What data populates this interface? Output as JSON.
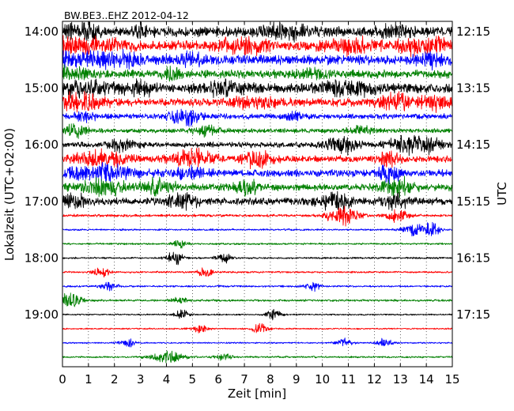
{
  "chart_data": {
    "type": "line",
    "title": "BW.BE3..EHZ 2012-04-12",
    "xlabel": "Zeit  [min]",
    "ylabel_left": "Lokalzeit (UTC+02:00)",
    "ylabel_right": "UTC",
    "xlim": [
      0,
      15
    ],
    "x_ticks": [
      0,
      1,
      2,
      3,
      4,
      5,
      6,
      7,
      8,
      9,
      10,
      11,
      12,
      13,
      14,
      15
    ],
    "x_grid": "dotted",
    "row_minutes": 15,
    "trace_colors": [
      "#000000",
      "#ff0000",
      "#0000ff",
      "#008000"
    ],
    "left_ticks": [
      {
        "label": "14:00",
        "row": 0
      },
      {
        "label": "15:00",
        "row": 4
      },
      {
        "label": "16:00",
        "row": 8
      },
      {
        "label": "17:00",
        "row": 12
      },
      {
        "label": "18:00",
        "row": 16
      },
      {
        "label": "19:00",
        "row": 20
      }
    ],
    "right_ticks": [
      {
        "label": "12:15",
        "row": 0
      },
      {
        "label": "13:15",
        "row": 4
      },
      {
        "label": "14:15",
        "row": 8
      },
      {
        "label": "15:15",
        "row": 12
      },
      {
        "label": "16:15",
        "row": 16
      },
      {
        "label": "17:15",
        "row": 20
      }
    ],
    "rows": [
      {
        "start": "14:00",
        "color": "#000000",
        "amplitude": 0.55,
        "events": [
          {
            "t": 0.4,
            "a": 1.0,
            "w": 0.9
          },
          {
            "t": 3.1,
            "a": 0.7,
            "w": 0.4
          },
          {
            "t": 8.5,
            "a": 0.6,
            "w": 1.0
          },
          {
            "t": 12.8,
            "a": 0.5,
            "w": 0.6
          }
        ]
      },
      {
        "start": "14:15",
        "color": "#ff0000",
        "amplitude": 0.6,
        "events": [
          {
            "t": 0.5,
            "a": 1.0,
            "w": 1.4
          },
          {
            "t": 7.0,
            "a": 1.0,
            "w": 0.7
          },
          {
            "t": 11.1,
            "a": 0.9,
            "w": 0.6
          },
          {
            "t": 13.9,
            "a": 1.0,
            "w": 0.8
          }
        ]
      },
      {
        "start": "14:30",
        "color": "#0000ff",
        "amplitude": 0.55,
        "events": [
          {
            "t": 0.5,
            "a": 1.0,
            "w": 1.8
          },
          {
            "t": 2.2,
            "a": 0.8,
            "w": 0.6
          },
          {
            "t": 5.0,
            "a": 0.5,
            "w": 0.5
          },
          {
            "t": 14.2,
            "a": 0.5,
            "w": 0.6
          }
        ]
      },
      {
        "start": "14:45",
        "color": "#008000",
        "amplitude": 0.45,
        "events": [
          {
            "t": 0.4,
            "a": 1.0,
            "w": 0.6
          },
          {
            "t": 4.2,
            "a": 0.6,
            "w": 0.3
          },
          {
            "t": 9.6,
            "a": 0.5,
            "w": 0.5
          }
        ]
      },
      {
        "start": "15:00",
        "color": "#000000",
        "amplitude": 0.5,
        "events": [
          {
            "t": 1.0,
            "a": 1.0,
            "w": 1.0
          },
          {
            "t": 3.0,
            "a": 0.7,
            "w": 0.5
          },
          {
            "t": 6.2,
            "a": 0.6,
            "w": 1.0
          },
          {
            "t": 11.0,
            "a": 0.6,
            "w": 1.2
          }
        ]
      },
      {
        "start": "15:15",
        "color": "#ff0000",
        "amplitude": 0.45,
        "events": [
          {
            "t": 0.5,
            "a": 0.9,
            "w": 1.0
          },
          {
            "t": 7.5,
            "a": 0.6,
            "w": 0.8
          },
          {
            "t": 12.7,
            "a": 0.8,
            "w": 0.6
          },
          {
            "t": 14.3,
            "a": 0.7,
            "w": 0.5
          }
        ]
      },
      {
        "start": "15:30",
        "color": "#0000ff",
        "amplitude": 0.3,
        "events": [
          {
            "t": 0.8,
            "a": 0.6,
            "w": 0.4
          },
          {
            "t": 4.7,
            "a": 1.0,
            "w": 0.5
          },
          {
            "t": 9.0,
            "a": 0.4,
            "w": 0.4
          }
        ]
      },
      {
        "start": "15:45",
        "color": "#008000",
        "amplitude": 0.25,
        "events": [
          {
            "t": 0.5,
            "a": 0.6,
            "w": 0.5
          },
          {
            "t": 5.5,
            "a": 0.5,
            "w": 0.5
          },
          {
            "t": 11.5,
            "a": 0.4,
            "w": 0.5
          }
        ]
      },
      {
        "start": "16:00",
        "color": "#000000",
        "amplitude": 0.3,
        "events": [
          {
            "t": 2.3,
            "a": 0.6,
            "w": 0.5
          },
          {
            "t": 10.7,
            "a": 1.0,
            "w": 0.6
          },
          {
            "t": 13.3,
            "a": 1.0,
            "w": 0.7
          },
          {
            "t": 14.1,
            "a": 0.8,
            "w": 0.5
          }
        ]
      },
      {
        "start": "16:15",
        "color": "#ff0000",
        "amplitude": 0.35,
        "events": [
          {
            "t": 1.5,
            "a": 0.8,
            "w": 1.0
          },
          {
            "t": 5.0,
            "a": 0.9,
            "w": 0.8
          },
          {
            "t": 7.5,
            "a": 0.8,
            "w": 0.6
          },
          {
            "t": 12.6,
            "a": 0.7,
            "w": 0.5
          }
        ]
      },
      {
        "start": "16:30",
        "color": "#0000ff",
        "amplitude": 0.4,
        "events": [
          {
            "t": 1.4,
            "a": 0.9,
            "w": 1.2
          },
          {
            "t": 4.9,
            "a": 0.6,
            "w": 0.6
          },
          {
            "t": 12.6,
            "a": 1.0,
            "w": 0.4
          }
        ]
      },
      {
        "start": "16:45",
        "color": "#008000",
        "amplitude": 0.4,
        "events": [
          {
            "t": 1.6,
            "a": 0.8,
            "w": 0.8
          },
          {
            "t": 3.7,
            "a": 1.0,
            "w": 0.6
          },
          {
            "t": 7.1,
            "a": 0.7,
            "w": 0.5
          },
          {
            "t": 12.9,
            "a": 1.0,
            "w": 0.5
          }
        ]
      },
      {
        "start": "17:00",
        "color": "#000000",
        "amplitude": 0.4,
        "events": [
          {
            "t": 0.4,
            "a": 0.7,
            "w": 0.6
          },
          {
            "t": 4.6,
            "a": 1.0,
            "w": 0.5
          },
          {
            "t": 10.5,
            "a": 1.0,
            "w": 0.6
          },
          {
            "t": 12.8,
            "a": 0.7,
            "w": 0.5
          }
        ]
      },
      {
        "start": "17:15",
        "color": "#ff0000",
        "amplitude": 0.15,
        "events": [
          {
            "t": 10.8,
            "a": 1.0,
            "w": 0.6
          },
          {
            "t": 12.9,
            "a": 0.8,
            "w": 0.4
          }
        ]
      },
      {
        "start": "17:30",
        "color": "#0000ff",
        "amplitude": 0.1,
        "events": [
          {
            "t": 13.5,
            "a": 0.6,
            "w": 0.4
          },
          {
            "t": 14.2,
            "a": 0.8,
            "w": 0.3
          }
        ]
      },
      {
        "start": "17:45",
        "color": "#008000",
        "amplitude": 0.1,
        "events": [
          {
            "t": 4.5,
            "a": 0.4,
            "w": 0.3
          }
        ]
      },
      {
        "start": "18:00",
        "color": "#000000",
        "amplitude": 0.1,
        "events": [
          {
            "t": 4.3,
            "a": 0.9,
            "w": 0.3
          },
          {
            "t": 6.2,
            "a": 0.5,
            "w": 0.3
          }
        ]
      },
      {
        "start": "18:15",
        "color": "#ff0000",
        "amplitude": 0.1,
        "events": [
          {
            "t": 1.5,
            "a": 0.5,
            "w": 0.3
          },
          {
            "t": 5.5,
            "a": 0.5,
            "w": 0.3
          }
        ]
      },
      {
        "start": "18:30",
        "color": "#0000ff",
        "amplitude": 0.1,
        "events": [
          {
            "t": 1.8,
            "a": 0.5,
            "w": 0.3
          },
          {
            "t": 9.6,
            "a": 0.5,
            "w": 0.3
          }
        ]
      },
      {
        "start": "18:45",
        "color": "#008000",
        "amplitude": 0.12,
        "events": [
          {
            "t": 0.3,
            "a": 1.0,
            "w": 0.4
          },
          {
            "t": 4.5,
            "a": 0.4,
            "w": 0.3
          }
        ]
      },
      {
        "start": "19:00",
        "color": "#000000",
        "amplitude": 0.08,
        "events": [
          {
            "t": 4.6,
            "a": 0.5,
            "w": 0.3
          },
          {
            "t": 8.1,
            "a": 0.5,
            "w": 0.3
          }
        ]
      },
      {
        "start": "19:15",
        "color": "#ff0000",
        "amplitude": 0.08,
        "events": [
          {
            "t": 5.3,
            "a": 0.5,
            "w": 0.3
          },
          {
            "t": 7.6,
            "a": 0.6,
            "w": 0.3
          }
        ]
      },
      {
        "start": "19:30",
        "color": "#0000ff",
        "amplitude": 0.08,
        "events": [
          {
            "t": 2.5,
            "a": 0.5,
            "w": 0.3
          },
          {
            "t": 10.8,
            "a": 0.5,
            "w": 0.3
          },
          {
            "t": 12.4,
            "a": 0.5,
            "w": 0.3
          }
        ]
      },
      {
        "start": "19:45",
        "color": "#008000",
        "amplitude": 0.1,
        "events": [
          {
            "t": 4.0,
            "a": 0.6,
            "w": 0.6
          },
          {
            "t": 6.2,
            "a": 0.4,
            "w": 0.3
          }
        ]
      }
    ]
  }
}
